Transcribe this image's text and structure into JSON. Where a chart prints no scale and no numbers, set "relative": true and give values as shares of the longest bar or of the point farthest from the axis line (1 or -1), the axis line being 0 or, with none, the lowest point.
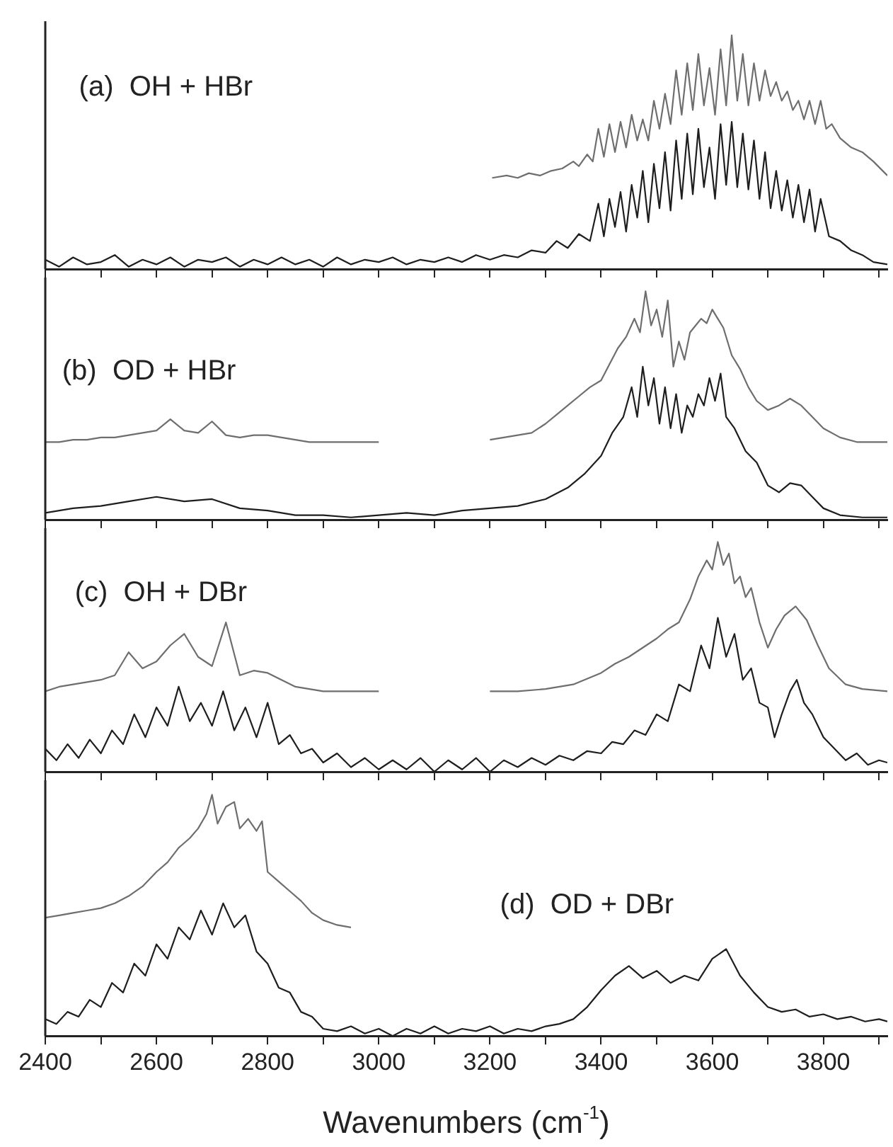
{
  "chart_data": [
    {
      "type": "line",
      "relative": true,
      "title": "(a)  OH + HBr",
      "xlim": [
        2400,
        3915
      ],
      "tick_labels": false,
      "xticks": [
        2400,
        {
          "value": 2500,
          "label": null
        },
        2600,
        {
          "value": 2700,
          "label": null
        },
        2800,
        {
          "value": 2900,
          "label": null
        },
        3000,
        {
          "value": 3100,
          "label": null
        },
        3200,
        {
          "value": 3300,
          "label": null
        },
        3400,
        {
          "value": 3500,
          "label": null
        },
        3600,
        {
          "value": 3700,
          "label": null
        },
        3800,
        {
          "value": 3900,
          "label": null
        }
      ],
      "series": [
        {
          "color": "#6e6e6e",
          "x": [
            3204,
            3230,
            3250,
            3270,
            3290,
            3310,
            3330,
            3350,
            3360,
            3375,
            3385,
            3395,
            3405,
            3415,
            3425,
            3435,
            3445,
            3455,
            3465,
            3475,
            3485,
            3495,
            3505,
            3515,
            3525,
            3535,
            3545,
            3555,
            3565,
            3575,
            3585,
            3595,
            3605,
            3615,
            3625,
            3635,
            3645,
            3655,
            3665,
            3675,
            3685,
            3695,
            3705,
            3715,
            3725,
            3735,
            3745,
            3755,
            3765,
            3775,
            3785,
            3795,
            3805,
            3815,
            3830,
            3850,
            3870,
            3890,
            3915
          ],
          "values": [
            0.39,
            0.4,
            0.39,
            0.41,
            0.4,
            0.42,
            0.43,
            0.46,
            0.44,
            0.49,
            0.46,
            0.6,
            0.48,
            0.62,
            0.5,
            0.63,
            0.52,
            0.66,
            0.55,
            0.64,
            0.55,
            0.72,
            0.6,
            0.75,
            0.62,
            0.85,
            0.66,
            0.88,
            0.68,
            0.92,
            0.7,
            0.86,
            0.66,
            0.94,
            0.7,
            1.0,
            0.72,
            0.92,
            0.7,
            0.88,
            0.72,
            0.85,
            0.74,
            0.8,
            0.72,
            0.76,
            0.68,
            0.72,
            0.64,
            0.72,
            0.62,
            0.72,
            0.6,
            0.62,
            0.56,
            0.52,
            0.5,
            0.46,
            0.4
          ]
        },
        {
          "color": "#1e1e1e",
          "x": [
            2400,
            2425,
            2450,
            2475,
            2500,
            2525,
            2550,
            2575,
            2600,
            2625,
            2650,
            2675,
            2700,
            2725,
            2750,
            2775,
            2800,
            2825,
            2850,
            2875,
            2900,
            2925,
            2950,
            2975,
            3000,
            3025,
            3050,
            3075,
            3100,
            3125,
            3150,
            3175,
            3200,
            3225,
            3250,
            3275,
            3300,
            3320,
            3340,
            3360,
            3380,
            3395,
            3405,
            3415,
            3425,
            3435,
            3445,
            3455,
            3465,
            3475,
            3485,
            3495,
            3505,
            3515,
            3525,
            3535,
            3545,
            3555,
            3565,
            3575,
            3585,
            3595,
            3605,
            3615,
            3625,
            3635,
            3645,
            3655,
            3665,
            3675,
            3685,
            3695,
            3705,
            3715,
            3725,
            3735,
            3745,
            3755,
            3765,
            3775,
            3785,
            3795,
            3810,
            3830,
            3850,
            3870,
            3890,
            3915
          ],
          "values": [
            0.04,
            0.01,
            0.05,
            0.02,
            0.03,
            0.06,
            0.01,
            0.04,
            0.02,
            0.05,
            0.01,
            0.04,
            0.03,
            0.05,
            0.01,
            0.04,
            0.02,
            0.05,
            0.02,
            0.04,
            0.01,
            0.05,
            0.02,
            0.04,
            0.03,
            0.05,
            0.02,
            0.04,
            0.03,
            0.05,
            0.03,
            0.06,
            0.04,
            0.06,
            0.05,
            0.08,
            0.07,
            0.12,
            0.09,
            0.15,
            0.12,
            0.28,
            0.14,
            0.3,
            0.18,
            0.33,
            0.16,
            0.36,
            0.22,
            0.42,
            0.2,
            0.45,
            0.26,
            0.5,
            0.25,
            0.55,
            0.3,
            0.58,
            0.32,
            0.6,
            0.35,
            0.52,
            0.3,
            0.62,
            0.36,
            0.63,
            0.35,
            0.58,
            0.34,
            0.55,
            0.3,
            0.5,
            0.26,
            0.42,
            0.25,
            0.38,
            0.22,
            0.36,
            0.2,
            0.34,
            0.16,
            0.3,
            0.14,
            0.12,
            0.08,
            0.06,
            0.03,
            0.02
          ]
        }
      ]
    },
    {
      "type": "line",
      "relative": true,
      "title": "(b)  OD + HBr",
      "xlim": [
        2400,
        3915
      ],
      "tick_labels": false,
      "xticks": [
        2400,
        {
          "value": 2500,
          "label": null
        },
        2600,
        {
          "value": 2700,
          "label": null
        },
        2800,
        {
          "value": 2900,
          "label": null
        },
        3000,
        {
          "value": 3100,
          "label": null
        },
        3200,
        {
          "value": 3300,
          "label": null
        },
        3400,
        {
          "value": 3500,
          "label": null
        },
        3600,
        {
          "value": 3700,
          "label": null
        },
        3800,
        {
          "value": 3900,
          "label": null
        }
      ],
      "series": [
        {
          "color": "#6e6e6e",
          "x": [
            2400,
            2425,
            2450,
            2475,
            2500,
            2525,
            2550,
            2575,
            2600,
            2625,
            2650,
            2675,
            2700,
            2725,
            2750,
            2775,
            2800,
            2825,
            2850,
            2875,
            2900,
            2925,
            2950,
            2975,
            3000,
            null,
            3200,
            3225,
            3250,
            3275,
            3300,
            3320,
            3340,
            3360,
            3380,
            3400,
            3415,
            3430,
            3445,
            3460,
            3470,
            3480,
            3490,
            3500,
            3510,
            3520,
            3530,
            3540,
            3550,
            3560,
            3570,
            3580,
            3590,
            3600,
            3610,
            3620,
            3635,
            3650,
            3665,
            3680,
            3700,
            3720,
            3740,
            3760,
            3780,
            3800,
            3830,
            3860,
            3890,
            3915
          ],
          "values": [
            0.34,
            0.34,
            0.35,
            0.35,
            0.36,
            0.36,
            0.37,
            0.38,
            0.39,
            0.44,
            0.39,
            0.38,
            0.43,
            0.37,
            0.36,
            0.37,
            0.37,
            0.36,
            0.35,
            0.34,
            0.34,
            0.34,
            0.34,
            0.34,
            0.34,
            null,
            0.35,
            0.36,
            0.37,
            0.38,
            0.42,
            0.46,
            0.5,
            0.54,
            0.58,
            0.61,
            0.68,
            0.75,
            0.8,
            0.88,
            0.82,
            1.0,
            0.85,
            0.92,
            0.8,
            0.96,
            0.67,
            0.78,
            0.7,
            0.82,
            0.85,
            0.88,
            0.86,
            0.92,
            0.88,
            0.84,
            0.72,
            0.66,
            0.58,
            0.52,
            0.48,
            0.5,
            0.53,
            0.5,
            0.45,
            0.4,
            0.36,
            0.34,
            0.34,
            0.34
          ]
        },
        {
          "color": "#1e1e1e",
          "x": [
            2400,
            2450,
            2500,
            2550,
            2600,
            2650,
            2700,
            2750,
            2800,
            2850,
            2900,
            2950,
            3000,
            3050,
            3100,
            3150,
            3200,
            3250,
            3300,
            3340,
            3370,
            3400,
            3420,
            3440,
            3455,
            3465,
            3475,
            3485,
            3495,
            3505,
            3515,
            3525,
            3535,
            3545,
            3555,
            3565,
            3575,
            3585,
            3595,
            3605,
            3615,
            3625,
            3640,
            3660,
            3680,
            3700,
            3720,
            3740,
            3760,
            3780,
            3800,
            3830,
            3870,
            3915
          ],
          "values": [
            0.03,
            0.05,
            0.06,
            0.08,
            0.1,
            0.08,
            0.09,
            0.05,
            0.04,
            0.02,
            0.02,
            0.01,
            0.02,
            0.03,
            0.02,
            0.04,
            0.05,
            0.06,
            0.09,
            0.14,
            0.2,
            0.28,
            0.38,
            0.45,
            0.58,
            0.45,
            0.67,
            0.5,
            0.62,
            0.42,
            0.58,
            0.4,
            0.55,
            0.38,
            0.5,
            0.45,
            0.55,
            0.5,
            0.62,
            0.52,
            0.64,
            0.45,
            0.4,
            0.3,
            0.25,
            0.15,
            0.12,
            0.16,
            0.15,
            0.1,
            0.05,
            0.02,
            0.01,
            0.01
          ]
        }
      ]
    },
    {
      "type": "line",
      "relative": true,
      "title": "(c)  OH + DBr",
      "xlim": [
        2400,
        3915
      ],
      "tick_labels": false,
      "xticks": [
        2400,
        {
          "value": 2500,
          "label": null
        },
        2600,
        {
          "value": 2700,
          "label": null
        },
        2800,
        {
          "value": 2900,
          "label": null
        },
        3000,
        {
          "value": 3100,
          "label": null
        },
        3200,
        {
          "value": 3300,
          "label": null
        },
        3400,
        {
          "value": 3500,
          "label": null
        },
        3600,
        {
          "value": 3700,
          "label": null
        },
        3800,
        {
          "value": 3900,
          "label": null
        }
      ],
      "series": [
        {
          "color": "#6e6e6e",
          "x": [
            2400,
            2425,
            2450,
            2475,
            2500,
            2525,
            2550,
            2575,
            2600,
            2625,
            2650,
            2675,
            2700,
            2725,
            2750,
            2775,
            2800,
            2825,
            2850,
            2875,
            2900,
            2925,
            2950,
            2975,
            3000,
            null,
            3200,
            3250,
            3300,
            3350,
            3400,
            3425,
            3450,
            3475,
            3500,
            3520,
            3540,
            3560,
            3575,
            3590,
            3600,
            3610,
            3620,
            3630,
            3640,
            3650,
            3660,
            3670,
            3685,
            3700,
            3715,
            3730,
            3750,
            3770,
            3790,
            3810,
            3840,
            3870,
            3915
          ],
          "values": [
            0.35,
            0.37,
            0.38,
            0.39,
            0.4,
            0.42,
            0.52,
            0.45,
            0.48,
            0.55,
            0.6,
            0.5,
            0.46,
            0.65,
            0.42,
            0.44,
            0.43,
            0.4,
            0.37,
            0.36,
            0.35,
            0.35,
            0.35,
            0.35,
            0.35,
            null,
            0.35,
            0.35,
            0.36,
            0.38,
            0.43,
            0.47,
            0.5,
            0.54,
            0.58,
            0.62,
            0.65,
            0.75,
            0.85,
            0.92,
            0.88,
            1.0,
            0.9,
            0.95,
            0.82,
            0.85,
            0.76,
            0.8,
            0.65,
            0.54,
            0.62,
            0.68,
            0.72,
            0.66,
            0.55,
            0.45,
            0.38,
            0.36,
            0.35
          ]
        },
        {
          "color": "#1e1e1e",
          "x": [
            2400,
            2420,
            2440,
            2460,
            2480,
            2500,
            2520,
            2540,
            2560,
            2580,
            2600,
            2620,
            2640,
            2660,
            2680,
            2700,
            2720,
            2740,
            2760,
            2780,
            2800,
            2820,
            2840,
            2860,
            2880,
            2900,
            2925,
            2950,
            2975,
            3000,
            3025,
            3050,
            3075,
            3100,
            3125,
            3150,
            3175,
            3200,
            3225,
            3250,
            3275,
            3300,
            3325,
            3350,
            3375,
            3400,
            3420,
            3440,
            3460,
            3480,
            3500,
            3520,
            3540,
            3560,
            3580,
            3595,
            3610,
            3625,
            3640,
            3655,
            3670,
            3685,
            3700,
            3712,
            3725,
            3740,
            3752,
            3765,
            3780,
            3800,
            3820,
            3840,
            3860,
            3880,
            3900,
            3915
          ],
          "values": [
            0.1,
            0.05,
            0.12,
            0.06,
            0.14,
            0.08,
            0.18,
            0.12,
            0.25,
            0.15,
            0.28,
            0.2,
            0.37,
            0.22,
            0.3,
            0.2,
            0.35,
            0.18,
            0.28,
            0.15,
            0.3,
            0.12,
            0.16,
            0.08,
            0.1,
            0.04,
            0.08,
            0.02,
            0.06,
            0.01,
            0.05,
            0.01,
            0.06,
            0,
            0.05,
            0.01,
            0.06,
            0,
            0.05,
            0.02,
            0.06,
            0.03,
            0.07,
            0.05,
            0.09,
            0.08,
            0.13,
            0.12,
            0.18,
            0.16,
            0.25,
            0.22,
            0.38,
            0.35,
            0.55,
            0.45,
            0.67,
            0.5,
            0.6,
            0.4,
            0.45,
            0.3,
            0.28,
            0.15,
            0.25,
            0.35,
            0.4,
            0.3,
            0.25,
            0.15,
            0.1,
            0.05,
            0.08,
            0.03,
            0.05,
            0.04
          ]
        }
      ]
    },
    {
      "type": "line",
      "relative": true,
      "title": "(d)  OD + DBr",
      "xlabel": "Wavenumbers (cm$^{-1}$)",
      "xlim": [
        2400,
        3915
      ],
      "tick_labels": "x",
      "xticks": [
        2400,
        {
          "value": 2500,
          "label": null
        },
        2600,
        {
          "value": 2700,
          "label": null
        },
        2800,
        {
          "value": 2900,
          "label": null
        },
        3000,
        {
          "value": 3100,
          "label": null
        },
        3200,
        {
          "value": 3300,
          "label": null
        },
        3400,
        {
          "value": 3500,
          "label": null
        },
        3600,
        {
          "value": 3700,
          "label": null
        },
        3800,
        {
          "value": 3900,
          "label": null
        }
      ],
      "series": [
        {
          "color": "#6e6e6e",
          "x": [
            2400,
            2425,
            2450,
            2475,
            2500,
            2525,
            2550,
            2575,
            2600,
            2620,
            2640,
            2660,
            2675,
            2690,
            2700,
            2710,
            2725,
            2740,
            2750,
            2765,
            2780,
            2790,
            2800,
            2820,
            2840,
            2860,
            2880,
            2900,
            2925,
            2950
          ],
          "values": [
            0.49,
            0.5,
            0.51,
            0.52,
            0.53,
            0.55,
            0.58,
            0.62,
            0.68,
            0.72,
            0.78,
            0.82,
            0.86,
            0.92,
            1.0,
            0.88,
            0.95,
            0.97,
            0.86,
            0.9,
            0.85,
            0.89,
            0.68,
            0.64,
            0.6,
            0.56,
            0.51,
            0.48,
            0.46,
            0.45
          ]
        },
        {
          "color": "#1e1e1e",
          "x": [
            2400,
            2420,
            2440,
            2460,
            2480,
            2500,
            2520,
            2540,
            2560,
            2580,
            2600,
            2620,
            2640,
            2660,
            2680,
            2700,
            2720,
            2740,
            2760,
            2780,
            2800,
            2820,
            2840,
            2860,
            2880,
            2900,
            2925,
            2950,
            2975,
            3000,
            3025,
            3050,
            3075,
            3100,
            3125,
            3150,
            3175,
            3200,
            3225,
            3250,
            3275,
            3300,
            3325,
            3350,
            3375,
            3400,
            3425,
            3450,
            3475,
            3500,
            3525,
            3550,
            3575,
            3600,
            3625,
            3650,
            3675,
            3700,
            3725,
            3750,
            3775,
            3800,
            3825,
            3850,
            3875,
            3900,
            3915
          ],
          "values": [
            0.07,
            0.05,
            0.1,
            0.08,
            0.15,
            0.12,
            0.22,
            0.18,
            0.3,
            0.25,
            0.38,
            0.32,
            0.45,
            0.4,
            0.52,
            0.42,
            0.55,
            0.45,
            0.5,
            0.35,
            0.3,
            0.2,
            0.18,
            0.1,
            0.08,
            0.03,
            0.02,
            0.04,
            0.01,
            0.03,
            0,
            0.03,
            0.01,
            0.04,
            0.01,
            0.03,
            0.02,
            0.04,
            0.01,
            0.03,
            0.02,
            0.04,
            0.05,
            0.07,
            0.12,
            0.19,
            0.25,
            0.29,
            0.24,
            0.27,
            0.22,
            0.25,
            0.23,
            0.32,
            0.36,
            0.25,
            0.18,
            0.12,
            0.1,
            0.11,
            0.08,
            0.09,
            0.07,
            0.08,
            0.06,
            0.07,
            0.06
          ]
        }
      ]
    }
  ]
}
